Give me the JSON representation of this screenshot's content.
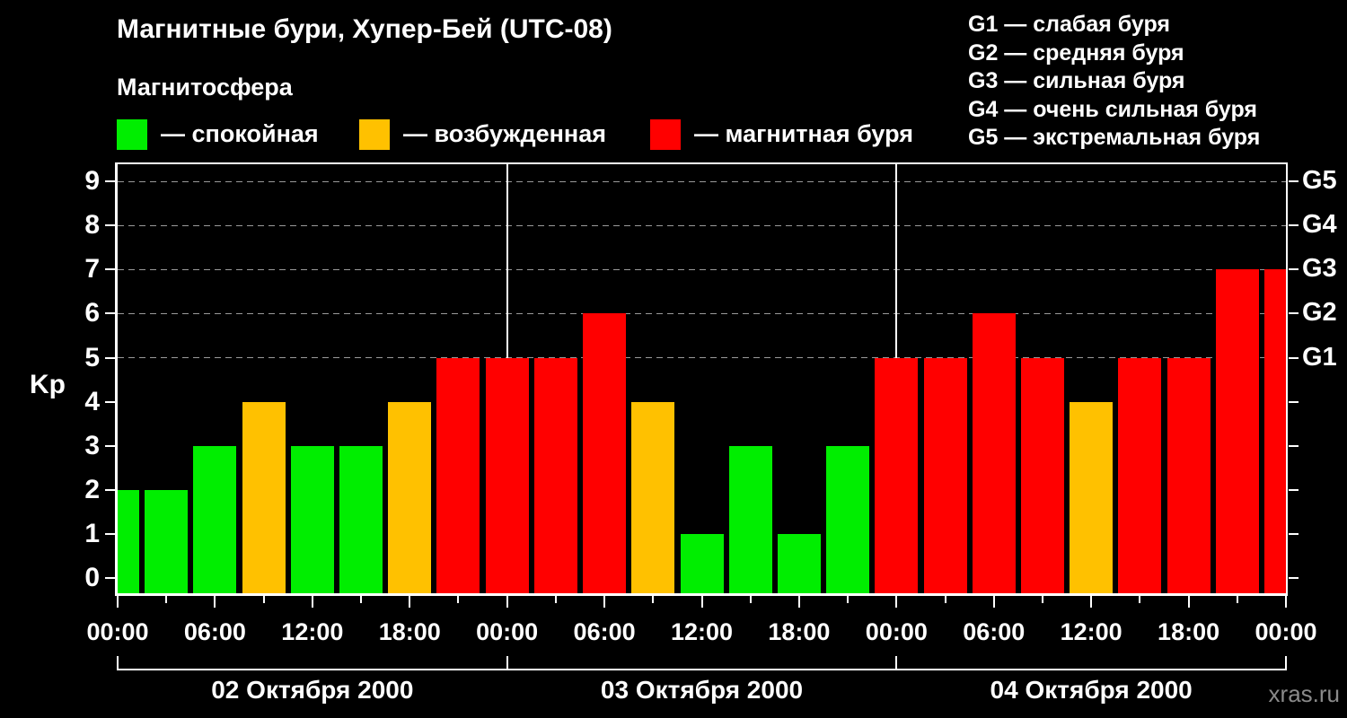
{
  "title": "Магнитные бури, Хупер-Бей (UTC-08)",
  "subtitle": "Магнитосфера",
  "kp_axis_label": "Kp",
  "watermark": "xras.ru",
  "legend": {
    "items": [
      {
        "name": "quiet",
        "label": "— спокойная",
        "color": "#00ee00"
      },
      {
        "name": "excited",
        "label": "— возбужденная",
        "color": "#ffc100"
      },
      {
        "name": "storm",
        "label": "— магнитная буря",
        "color": "#ff0000"
      }
    ]
  },
  "g_legend": {
    "lines": [
      "G1 — слабая буря",
      "G2 — средняя буря",
      "G3 — сильная буря",
      "G4 — очень сильная буря",
      "G5 — экстремальная буря"
    ]
  },
  "chart_data": {
    "type": "bar",
    "title": "Магнитные бури, Хупер-Бей (UTC-08)",
    "ylabel": "Kp",
    "ylim": [
      0,
      9
    ],
    "y_ticks": [
      0,
      1,
      2,
      3,
      4,
      5,
      6,
      7,
      8,
      9
    ],
    "x_unit": "hours from 02.10.2000 00:00 (UTC-08), one bar per 3-hour interval",
    "x": [
      0,
      3,
      6,
      9,
      12,
      15,
      18,
      21,
      24,
      27,
      30,
      33,
      36,
      39,
      42,
      45,
      48,
      51,
      54,
      57,
      60,
      63,
      66,
      69,
      72
    ],
    "values": [
      2,
      2,
      3,
      4,
      3,
      3,
      4,
      5,
      5,
      5,
      6,
      4,
      1,
      3,
      1,
      3,
      5,
      5,
      6,
      5,
      4,
      5,
      5,
      7,
      7
    ],
    "bar_colors": {
      "quiet": "#00ee00",
      "excited": "#ffc100",
      "storm": "#ff0000"
    },
    "bar_color_rule": {
      "quiet_max": 3,
      "excited_value": 4,
      "storm_min": 5
    },
    "gridline_levels": [
      5,
      6,
      7,
      8,
      9
    ],
    "grid": "dashed horizontal lines at storm levels G1-G5 only",
    "right_axis": [
      {
        "kp": 5,
        "label": "G1"
      },
      {
        "kp": 6,
        "label": "G2"
      },
      {
        "kp": 7,
        "label": "G3"
      },
      {
        "kp": 8,
        "label": "G4"
      },
      {
        "kp": 9,
        "label": "G5"
      }
    ],
    "x_major_ticks": [
      {
        "hour": 0,
        "label": "00:00"
      },
      {
        "hour": 6,
        "label": "06:00"
      },
      {
        "hour": 12,
        "label": "12:00"
      },
      {
        "hour": 18,
        "label": "18:00"
      },
      {
        "hour": 24,
        "label": "00:00"
      },
      {
        "hour": 30,
        "label": "06:00"
      },
      {
        "hour": 36,
        "label": "12:00"
      },
      {
        "hour": 42,
        "label": "18:00"
      },
      {
        "hour": 48,
        "label": "00:00"
      },
      {
        "hour": 54,
        "label": "06:00"
      },
      {
        "hour": 60,
        "label": "12:00"
      },
      {
        "hour": 66,
        "label": "18:00"
      },
      {
        "hour": 72,
        "label": "00:00"
      }
    ],
    "x_minor_hours": [
      3,
      9,
      15,
      21,
      27,
      33,
      39,
      45,
      51,
      57,
      63,
      69
    ],
    "day_boundaries_hours": [
      0,
      24,
      48,
      72
    ],
    "dates": [
      "02 Октября 2000",
      "03 Октября 2000",
      "04 Октября 2000"
    ],
    "legend_position": "top"
  }
}
